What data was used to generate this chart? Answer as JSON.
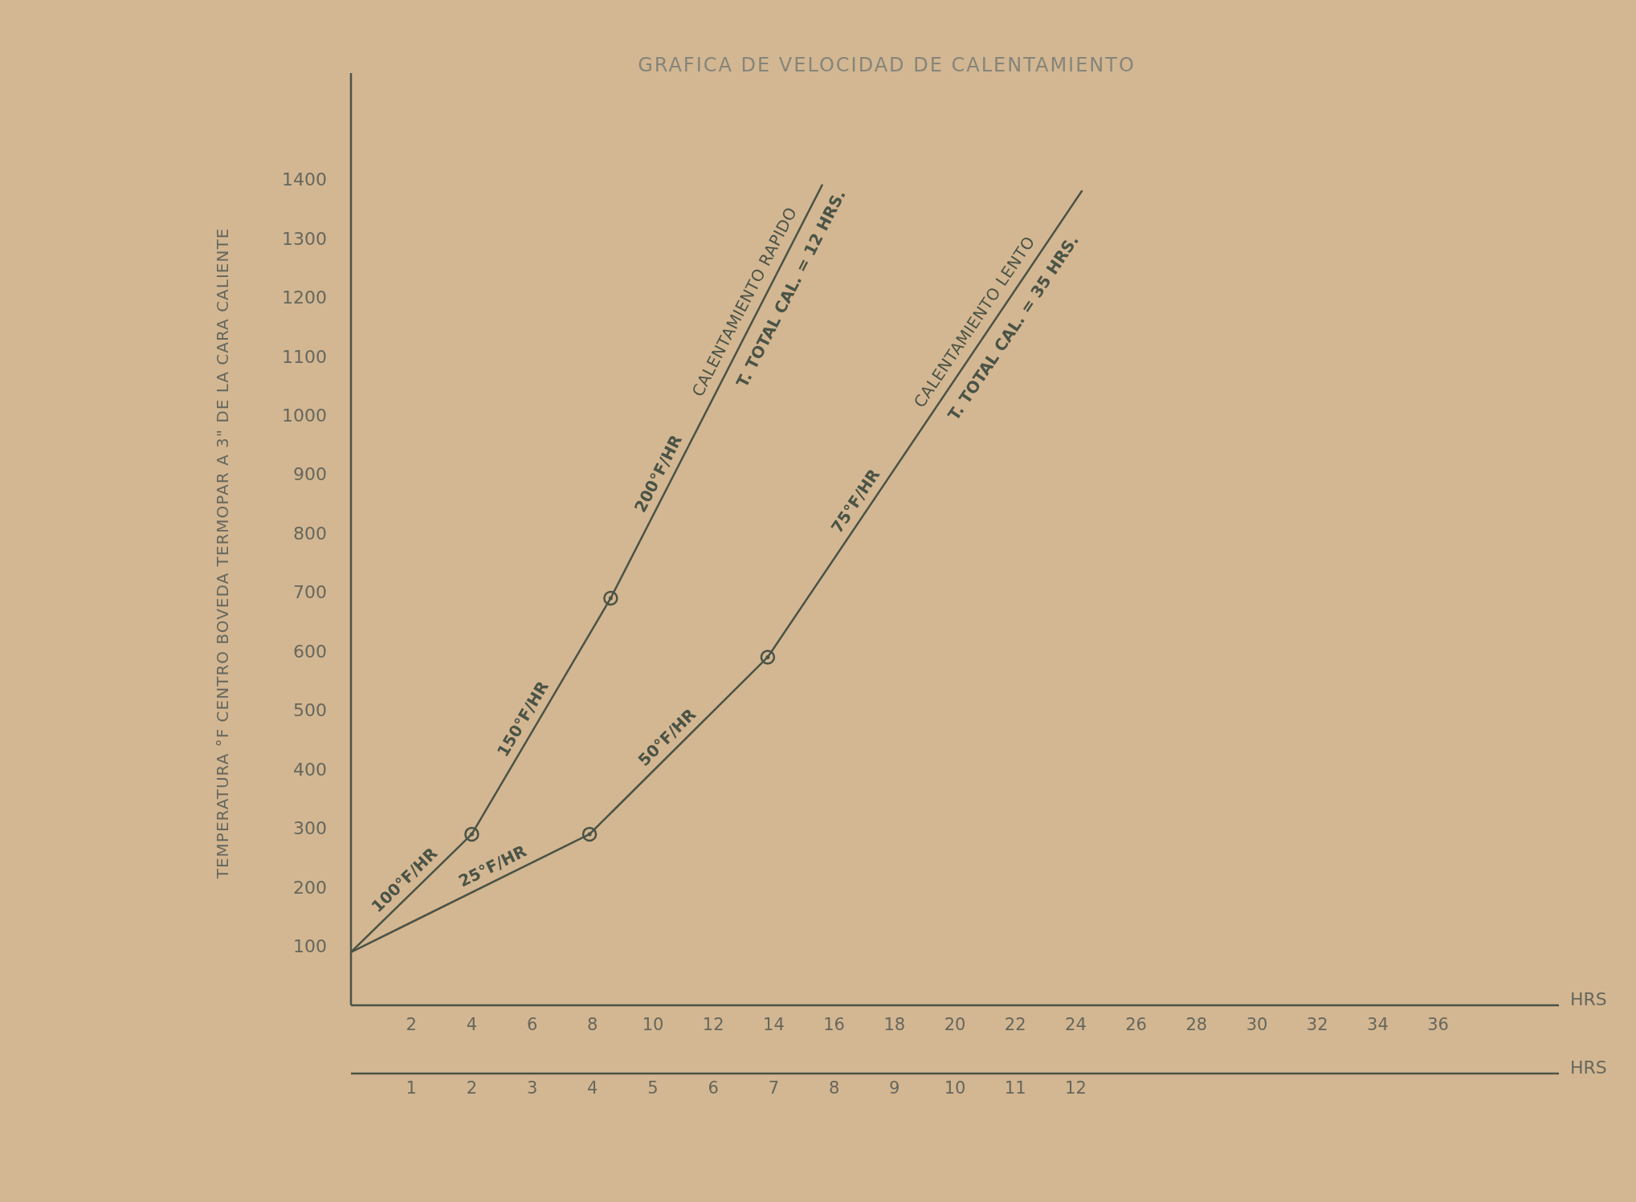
{
  "chart_data": {
    "type": "line",
    "title": "GRAFICA DE VELOCIDAD DE CALENTAMIENTO",
    "xlabel": "HRS",
    "x2label": "HRS",
    "ylabel": "TEMPERATURA °F CENTRO BOVEDA TERMOPAR A 3\" DE LA CARA CALIENTE",
    "xlim": [
      0,
      40
    ],
    "xticks": [
      2,
      4,
      6,
      8,
      10,
      12,
      14,
      16,
      18,
      20,
      22,
      24,
      26,
      28,
      30,
      32,
      34,
      36
    ],
    "x2lim": [
      0,
      20
    ],
    "x2ticks": [
      1,
      2,
      3,
      4,
      5,
      6,
      7,
      8,
      9,
      10,
      11,
      12
    ],
    "ylim": [
      0,
      1580
    ],
    "yticks": [
      100,
      200,
      300,
      400,
      500,
      600,
      700,
      800,
      900,
      1000,
      1100,
      1200,
      1300,
      1400
    ],
    "series": [
      {
        "name": "CALENTAMIENTO RAPIDO",
        "axis": "x2",
        "color": "#4a5346",
        "x": [
          0,
          2,
          4.3,
          7.8
        ],
        "values": [
          90,
          290,
          690,
          1390
        ]
      },
      {
        "name": "CALENTAMIENTO LENTO",
        "color": "#4a5346",
        "x": [
          0,
          7.9,
          13.8,
          24.2
        ],
        "values": [
          90,
          290,
          590,
          1380
        ]
      },
      {
        "type": "scatter",
        "axis": "x2",
        "marker": "circle",
        "color": "#4a5346",
        "x": [
          2,
          4.3
        ],
        "values": [
          290,
          690
        ]
      },
      {
        "type": "scatter",
        "marker": "circle",
        "color": "#4a5346",
        "x": [
          7.9,
          13.8
        ],
        "values": [
          290,
          590
        ]
      }
    ],
    "annotations": [
      {
        "text": "100°F/HR",
        "x": 2.1,
        "y": 195
      },
      {
        "text": "25°F/HR",
        "x": 4.9,
        "y": 214
      },
      {
        "text": "150°F/HR",
        "x": 6.1,
        "y": 473
      },
      {
        "text": "50°F/HR",
        "x": 10.8,
        "y": 437
      },
      {
        "text": "200°F/HR",
        "x": 10.6,
        "y": 890
      },
      {
        "text": "75°F/HR",
        "x": 17.1,
        "y": 841
      },
      {
        "text": "T. TOTAL CAL. = 12 HRS.",
        "x": 14,
        "y": 1230
      },
      {
        "text": "T. TOTAL CAL. = 35 HRS.",
        "x": 21.4,
        "y": 1167
      }
    ]
  }
}
